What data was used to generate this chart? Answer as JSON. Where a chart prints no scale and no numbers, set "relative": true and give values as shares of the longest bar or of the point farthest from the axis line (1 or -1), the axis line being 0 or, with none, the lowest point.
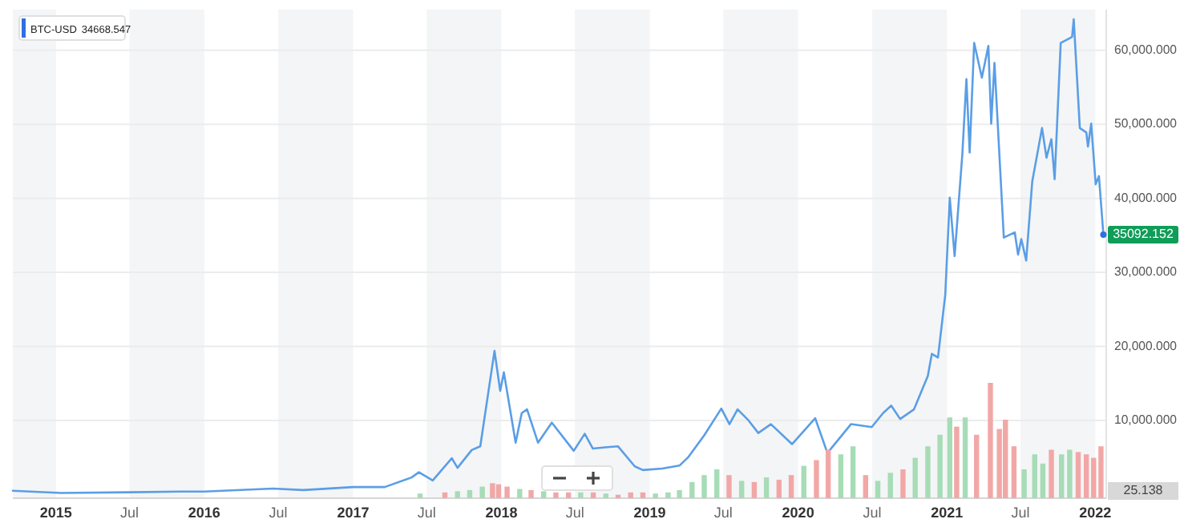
{
  "chart_data": [
    {
      "type": "line",
      "legend": "top left",
      "grid": "y",
      "xlim": [
        "2014-09-17",
        "2022-01-28"
      ],
      "ylim": [
        -500,
        65500
      ],
      "xticks": [
        {
          "value": "2015-01-01",
          "label": "2015"
        },
        {
          "value": "2015-07-01",
          "label": "Jul"
        },
        {
          "value": "2016-01-01",
          "label": "2016"
        },
        {
          "value": "2016-07-01",
          "label": "Jul"
        },
        {
          "value": "2017-01-01",
          "label": "2017"
        },
        {
          "value": "2017-07-01",
          "label": "Jul"
        },
        {
          "value": "2018-01-01",
          "label": "2018"
        },
        {
          "value": "2018-07-01",
          "label": "Jul"
        },
        {
          "value": "2019-01-01",
          "label": "2019"
        },
        {
          "value": "2019-07-01",
          "label": "Jul"
        },
        {
          "value": "2020-01-01",
          "label": "2020"
        },
        {
          "value": "2020-07-01",
          "label": "Jul"
        },
        {
          "value": "2021-01-01",
          "label": "2021"
        },
        {
          "value": "2021-07-01",
          "label": "Jul"
        },
        {
          "value": "2022-01-01",
          "label": "2022"
        }
      ],
      "yticks": [
        {
          "value": 10000,
          "label": "10,000.000"
        },
        {
          "value": 20000,
          "label": "20,000.000"
        },
        {
          "value": 30000,
          "label": "30,000.000"
        },
        {
          "value": 40000,
          "label": "40,000.000"
        },
        {
          "value": 50000,
          "label": "50,000.000"
        },
        {
          "value": 60000,
          "label": "60,000.000"
        }
      ],
      "bands": [
        {
          "axis": "x",
          "from": "2014-09-17",
          "to": "2015-01-01",
          "color": "#f4f5f6"
        },
        {
          "axis": "x",
          "from": "2015-07-01",
          "to": "2016-01-01",
          "color": "#f4f5f6"
        },
        {
          "axis": "x",
          "from": "2016-07-01",
          "to": "2017-01-01",
          "color": "#f4f5f6"
        },
        {
          "axis": "x",
          "from": "2017-07-01",
          "to": "2018-01-01",
          "color": "#f4f5f6"
        },
        {
          "axis": "x",
          "from": "2018-07-01",
          "to": "2019-01-01",
          "color": "#f4f5f6"
        },
        {
          "axis": "x",
          "from": "2019-07-01",
          "to": "2020-01-01",
          "color": "#f4f5f6"
        },
        {
          "axis": "x",
          "from": "2020-07-01",
          "to": "2021-01-01",
          "color": "#f4f5f6"
        },
        {
          "axis": "x",
          "from": "2021-07-01",
          "to": "2022-01-01",
          "color": "#f4f5f6"
        }
      ],
      "x": [
        "2014-09-17",
        "2015-01-14",
        "2015-07-01",
        "2015-11-04",
        "2016-01-01",
        "2016-06-18",
        "2016-09-01",
        "2017-01-01",
        "2017-03-20",
        "2017-05-25",
        "2017-06-12",
        "2017-07-16",
        "2017-09-01",
        "2017-09-15",
        "2017-10-20",
        "2017-11-10",
        "2017-12-15",
        "2017-12-29",
        "2018-01-07",
        "2018-02-05",
        "2018-02-20",
        "2018-03-05",
        "2018-04-01",
        "2018-05-05",
        "2018-06-28",
        "2018-07-25",
        "2018-08-14",
        "2018-09-20",
        "2018-10-15",
        "2018-11-25",
        "2018-12-15",
        "2019-02-01",
        "2019-03-15",
        "2019-04-05",
        "2019-05-15",
        "2019-06-26",
        "2019-07-16",
        "2019-08-05",
        "2019-09-01",
        "2019-09-25",
        "2019-10-26",
        "2019-12-17",
        "2020-02-12",
        "2020-03-13",
        "2020-05-10",
        "2020-06-30",
        "2020-07-28",
        "2020-08-17",
        "2020-09-08",
        "2020-10-12",
        "2020-11-15",
        "2020-11-25",
        "2020-12-10",
        "2020-12-28",
        "2021-01-08",
        "2021-01-20",
        "2021-02-08",
        "2021-02-18",
        "2021-02-26",
        "2021-03-09",
        "2021-03-28",
        "2021-04-13",
        "2021-04-20",
        "2021-04-28",
        "2021-05-21",
        "2021-06-17",
        "2021-06-25",
        "2021-07-03",
        "2021-07-15",
        "2021-07-30",
        "2021-08-23",
        "2021-09-03",
        "2021-09-15",
        "2021-09-23",
        "2021-10-08",
        "2021-11-05",
        "2021-11-09",
        "2021-11-24",
        "2021-12-10",
        "2021-12-14",
        "2021-12-22",
        "2022-01-02",
        "2022-01-10",
        "2022-01-21"
      ],
      "series": [
        {
          "name": "BTC-USD",
          "color": "#5a9ee6",
          "values": [
            500,
            200,
            300,
            400,
            400,
            800,
            600,
            1000,
            1000,
            2300,
            3000,
            1900,
            4900,
            3600,
            6000,
            6500,
            19400,
            14000,
            16500,
            7000,
            11000,
            11500,
            7000,
            9700,
            5900,
            8200,
            6200,
            6400,
            6500,
            3800,
            3300,
            3500,
            3900,
            5000,
            8000,
            11600,
            9500,
            11500,
            10000,
            8300,
            9500,
            6800,
            10300,
            5600,
            9500,
            9100,
            11000,
            12000,
            10200,
            11500,
            16000,
            19000,
            18500,
            27000,
            40100,
            32200,
            46000,
            56100,
            46200,
            61000,
            56300,
            60600,
            50100,
            58300,
            34700,
            35400,
            32400,
            34500,
            31600,
            42300,
            49500,
            45500,
            48000,
            42600,
            61000,
            61800,
            64200,
            49500,
            48900,
            47000,
            50100,
            41900,
            43000,
            35092.152
          ]
        }
      ],
      "annotations": [
        "34668.547",
        {
          "text": "35092.152",
          "x": "2022-01-21",
          "y": 35092.152
        }
      ]
    },
    {
      "type": "bar",
      "relative": true,
      "xlim": [
        "2014-09-17",
        "2022-01-28"
      ],
      "x": [
        "2017-06-15",
        "2017-08-15",
        "2017-09-15",
        "2017-10-15",
        "2017-11-15",
        "2017-12-10",
        "2017-12-25",
        "2018-01-15",
        "2018-02-15",
        "2018-03-15",
        "2018-04-15",
        "2018-05-15",
        "2018-06-15",
        "2018-07-15",
        "2018-08-15",
        "2018-09-15",
        "2018-10-15",
        "2018-11-15",
        "2018-12-15",
        "2019-01-15",
        "2019-02-15",
        "2019-03-15",
        "2019-04-15",
        "2019-05-15",
        "2019-06-15",
        "2019-07-15",
        "2019-08-15",
        "2019-09-15",
        "2019-10-15",
        "2019-11-15",
        "2019-12-15",
        "2020-01-15",
        "2020-02-15",
        "2020-03-15",
        "2020-04-15",
        "2020-05-15",
        "2020-06-15",
        "2020-07-15",
        "2020-08-15",
        "2020-09-15",
        "2020-10-15",
        "2020-11-15",
        "2020-12-15",
        "2021-01-08",
        "2021-01-25",
        "2021-02-15",
        "2021-03-15",
        "2021-04-18",
        "2021-05-10",
        "2021-05-25",
        "2021-06-15",
        "2021-07-10",
        "2021-08-05",
        "2021-08-25",
        "2021-09-15",
        "2021-10-10",
        "2021-10-30",
        "2021-11-20",
        "2021-12-10",
        "2021-12-28",
        "2022-01-15"
      ],
      "values": [
        0.04,
        0.05,
        0.06,
        0.07,
        0.1,
        0.13,
        0.12,
        0.1,
        0.08,
        0.07,
        0.06,
        0.05,
        0.05,
        0.05,
        0.05,
        0.04,
        0.03,
        0.05,
        0.05,
        0.04,
        0.05,
        0.07,
        0.14,
        0.2,
        0.25,
        0.2,
        0.15,
        0.14,
        0.18,
        0.16,
        0.2,
        0.28,
        0.33,
        0.42,
        0.38,
        0.45,
        0.2,
        0.15,
        0.22,
        0.25,
        0.35,
        0.45,
        0.55,
        0.7,
        0.62,
        0.7,
        0.55,
        1,
        0.6,
        0.68,
        0.45,
        0.25,
        0.38,
        0.3,
        0.42,
        0.38,
        0.42,
        0.4,
        0.38,
        0.35,
        0.45
      ],
      "colors": [
        "#a6dcb6",
        "#f2a7a7",
        "#a6dcb6",
        "#a6dcb6",
        "#a6dcb6",
        "#f2a7a7",
        "#f2a7a7",
        "#f2a7a7",
        "#a6dcb6",
        "#f2a7a7",
        "#a6dcb6",
        "#f2a7a7",
        "#f2a7a7",
        "#a6dcb6",
        "#f2a7a7",
        "#a6dcb6",
        "#f2a7a7",
        "#f2a7a7",
        "#f2a7a7",
        "#a6dcb6",
        "#a6dcb6",
        "#a6dcb6",
        "#a6dcb6",
        "#a6dcb6",
        "#a6dcb6",
        "#f2a7a7",
        "#a6dcb6",
        "#f2a7a7",
        "#a6dcb6",
        "#f2a7a7",
        "#f2a7a7",
        "#a6dcb6",
        "#f2a7a7",
        "#f2a7a7",
        "#a6dcb6",
        "#a6dcb6",
        "#f2a7a7",
        "#a6dcb6",
        "#a6dcb6",
        "#f2a7a7",
        "#a6dcb6",
        "#a6dcb6",
        "#a6dcb6",
        "#a6dcb6",
        "#f2a7a7",
        "#a6dcb6",
        "#f2a7a7",
        "#f2a7a7",
        "#f2a7a7",
        "#f2a7a7",
        "#f2a7a7",
        "#a6dcb6",
        "#a6dcb6",
        "#a6dcb6",
        "#f2a7a7",
        "#a6dcb6",
        "#a6dcb6",
        "#f2a7a7",
        "#f2a7a7",
        "#f2a7a7",
        "#f2a7a7"
      ],
      "annotations": [
        "25.138"
      ]
    }
  ]
}
